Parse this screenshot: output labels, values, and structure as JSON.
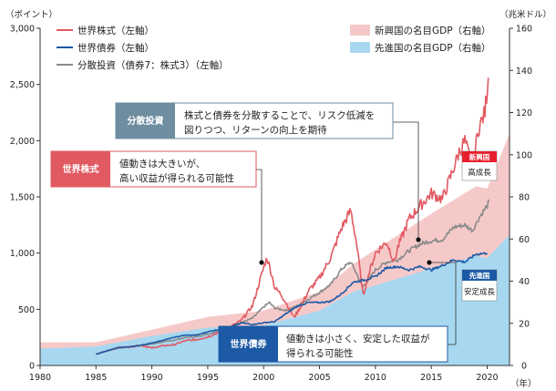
{
  "chart_data": {
    "type": "line",
    "left_axis_unit": "（ポイント）",
    "right_axis_unit": "（兆米ドル）",
    "x_axis_unit": "（年）",
    "x_ticks": [
      1980,
      1985,
      1990,
      1995,
      2000,
      2005,
      2010,
      2015,
      2020
    ],
    "y_left_ticks": [
      0,
      500,
      1000,
      1500,
      2000,
      2500,
      3000
    ],
    "y_left_tick_labels": [
      "0",
      "500",
      "1,000",
      "1,500",
      "2,000",
      "2,500",
      "3,000"
    ],
    "y_right_ticks": [
      0,
      20,
      40,
      60,
      80,
      100,
      120,
      140,
      160
    ],
    "xlim": [
      1980,
      2022
    ],
    "ylim_left": [
      0,
      3000
    ],
    "ylim_right": [
      0,
      160
    ],
    "legend": {
      "equity": "世界株式（左軸）",
      "bond": "世界債券（左軸）",
      "mix": "分散投資（債券7：株式3）（左軸）",
      "emerging_gdp": "新興国の名目GDP（右軸）",
      "developed_gdp": "先進国の名目GDP（右軸）"
    },
    "series": [
      {
        "name": "世界株式（左軸）",
        "color": "#e15a62",
        "points": [
          [
            1985,
            100
          ],
          [
            1986,
            130
          ],
          [
            1987,
            160
          ],
          [
            1988,
            165
          ],
          [
            1989,
            180
          ],
          [
            1990,
            155
          ],
          [
            1991,
            175
          ],
          [
            1992,
            185
          ],
          [
            1993,
            220
          ],
          [
            1994,
            230
          ],
          [
            1995,
            255
          ],
          [
            1996,
            295
          ],
          [
            1997,
            340
          ],
          [
            1998,
            400
          ],
          [
            1999,
            530
          ],
          [
            2000,
            870
          ],
          [
            2000.3,
            960
          ],
          [
            2000.8,
            780
          ],
          [
            2001,
            690
          ],
          [
            2001.5,
            640
          ],
          [
            2002,
            560
          ],
          [
            2002.7,
            430
          ],
          [
            2003,
            470
          ],
          [
            2003.5,
            560
          ],
          [
            2004,
            660
          ],
          [
            2005,
            780
          ],
          [
            2006,
            960
          ],
          [
            2007,
            1230
          ],
          [
            2007.8,
            1380
          ],
          [
            2008.3,
            1100
          ],
          [
            2008.9,
            620
          ],
          [
            2009.3,
            780
          ],
          [
            2010,
            1000
          ],
          [
            2011,
            1100
          ],
          [
            2011.7,
            920
          ],
          [
            2012,
            1050
          ],
          [
            2013,
            1300
          ],
          [
            2014,
            1420
          ],
          [
            2015,
            1530
          ],
          [
            2016,
            1480
          ],
          [
            2016.8,
            1700
          ],
          [
            2017.5,
            1900
          ],
          [
            2018,
            2000
          ],
          [
            2018.7,
            1750
          ],
          [
            2019.2,
            2100
          ],
          [
            2019.8,
            2250
          ],
          [
            2020.1,
            2560
          ]
        ]
      },
      {
        "name": "世界債券（左軸）",
        "color": "#1d5aa5",
        "points": [
          [
            1985,
            100
          ],
          [
            1986,
            130
          ],
          [
            1987,
            160
          ],
          [
            1988,
            165
          ],
          [
            1989,
            180
          ],
          [
            1990,
            200
          ],
          [
            1991,
            225
          ],
          [
            1992,
            250
          ],
          [
            1993,
            270
          ],
          [
            1994,
            270
          ],
          [
            1995,
            300
          ],
          [
            1996,
            320
          ],
          [
            1997,
            340
          ],
          [
            1998,
            380
          ],
          [
            1999,
            365
          ],
          [
            2000,
            380
          ],
          [
            2001,
            390
          ],
          [
            2002,
            460
          ],
          [
            2003,
            525
          ],
          [
            2004,
            560
          ],
          [
            2005,
            560
          ],
          [
            2006,
            570
          ],
          [
            2007,
            640
          ],
          [
            2008,
            740
          ],
          [
            2009,
            760
          ],
          [
            2010,
            790
          ],
          [
            2011,
            870
          ],
          [
            2012,
            880
          ],
          [
            2013,
            850
          ],
          [
            2014,
            880
          ],
          [
            2015,
            850
          ],
          [
            2016,
            890
          ],
          [
            2017,
            940
          ],
          [
            2018,
            920
          ],
          [
            2019,
            990
          ],
          [
            2020,
            1000
          ]
        ]
      },
      {
        "name": "分散投資（債券7：株式3）（左軸）",
        "color": "#8a8a8a",
        "points": [
          [
            1985,
            100
          ],
          [
            1986,
            130
          ],
          [
            1987,
            155
          ],
          [
            1988,
            165
          ],
          [
            1989,
            180
          ],
          [
            1990,
            190
          ],
          [
            1991,
            210
          ],
          [
            1992,
            225
          ],
          [
            1993,
            250
          ],
          [
            1994,
            255
          ],
          [
            1995,
            280
          ],
          [
            1996,
            305
          ],
          [
            1997,
            330
          ],
          [
            1998,
            380
          ],
          [
            1999,
            420
          ],
          [
            2000,
            520
          ],
          [
            2000.5,
            560
          ],
          [
            2001,
            510
          ],
          [
            2002,
            490
          ],
          [
            2003,
            530
          ],
          [
            2004,
            590
          ],
          [
            2005,
            650
          ],
          [
            2006,
            720
          ],
          [
            2007,
            860
          ],
          [
            2007.8,
            920
          ],
          [
            2008.5,
            780
          ],
          [
            2008.9,
            700
          ],
          [
            2009.5,
            780
          ],
          [
            2010,
            850
          ],
          [
            2011,
            920
          ],
          [
            2012,
            940
          ],
          [
            2013,
            1020
          ],
          [
            2014,
            1080
          ],
          [
            2015,
            1110
          ],
          [
            2016,
            1120
          ],
          [
            2017,
            1230
          ],
          [
            2018,
            1250
          ],
          [
            2018.7,
            1200
          ],
          [
            2019.3,
            1320
          ],
          [
            2020,
            1420
          ],
          [
            2020.2,
            1470
          ]
        ]
      },
      {
        "name": "新興国の名目GDP（右軸）",
        "color": "#f6c9c9",
        "axis": "right",
        "points": [
          [
            1980,
            11
          ],
          [
            1985,
            11
          ],
          [
            1990,
            17
          ],
          [
            1995,
            23
          ],
          [
            2000,
            26
          ],
          [
            2005,
            35
          ],
          [
            2008,
            48
          ],
          [
            2010,
            55
          ],
          [
            2015,
            72
          ],
          [
            2019,
            85
          ],
          [
            2020,
            84
          ],
          [
            2022,
            110
          ]
        ]
      },
      {
        "name": "先進国の名目GDP（右軸）",
        "color": "#a8d8f0",
        "axis": "right",
        "points": [
          [
            1980,
            8
          ],
          [
            1985,
            9
          ],
          [
            1990,
            14
          ],
          [
            1995,
            18
          ],
          [
            2000,
            19
          ],
          [
            2005,
            26
          ],
          [
            2008,
            35
          ],
          [
            2010,
            38
          ],
          [
            2015,
            46
          ],
          [
            2019,
            52
          ],
          [
            2020,
            51
          ],
          [
            2022,
            62
          ]
        ]
      }
    ]
  },
  "annotations": {
    "diversify": {
      "head": "分散投資",
      "line1": "株式と債券を分散することで、リスク低減を",
      "line2": "図りつつ、リターンの向上を期待"
    },
    "equity": {
      "head": "世界株式",
      "line1": "値動きは大きいが、",
      "line2": "高い収益が得られる可能性"
    },
    "bond": {
      "head": "世界債券",
      "line1": "値動きは小さく、安定した収益が",
      "line2": "得られる可能性"
    }
  },
  "badges": {
    "emerging": {
      "top": "新興国",
      "bottom": "高成長"
    },
    "developed": {
      "top": "先進国",
      "bottom": "安定成長"
    }
  },
  "colors": {
    "diversify_head": "#6e8ea0",
    "equity_head": "#e15a62",
    "bond_head": "#1d5aa5",
    "badge_emerging": "#e7202e",
    "badge_developed": "#1d5aa5"
  }
}
